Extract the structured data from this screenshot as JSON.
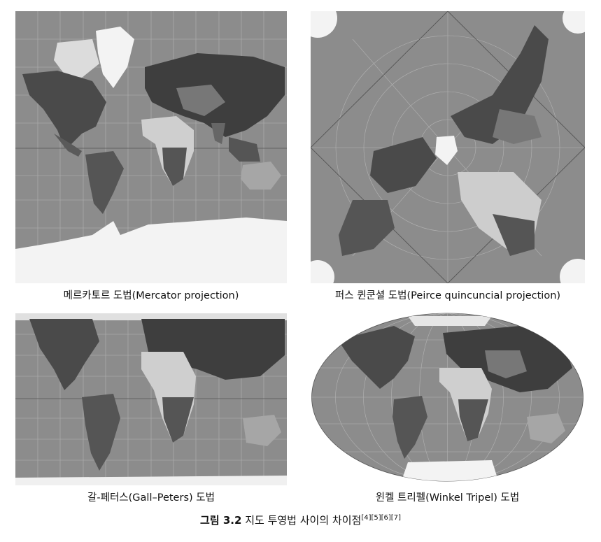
{
  "maps": [
    {
      "id": "mercator",
      "caption": "메르카토르 도법(Mercator projection)"
    },
    {
      "id": "peirce",
      "caption": "퍼스 퀸쿤셜 도법(Peirce quincuncial projection)"
    },
    {
      "id": "gall-peters",
      "caption": "갈-페터스(Gall–Peters) 도법"
    },
    {
      "id": "winkel",
      "caption": "윈켈 트리펠(Winkel Tripel) 도법"
    }
  ],
  "figure": {
    "label": "그림 3.2",
    "text": "지도 투영법 사이의 차이점",
    "refs": "[4][5][6][7]"
  },
  "colors": {
    "ocean": "#8c8c8c",
    "land_dark": "#4a4a4a",
    "land_mid": "#6e6e6e",
    "desert": "#c9c9c9",
    "ice": "#f3f3f3",
    "grid": "#bdbdbd"
  }
}
